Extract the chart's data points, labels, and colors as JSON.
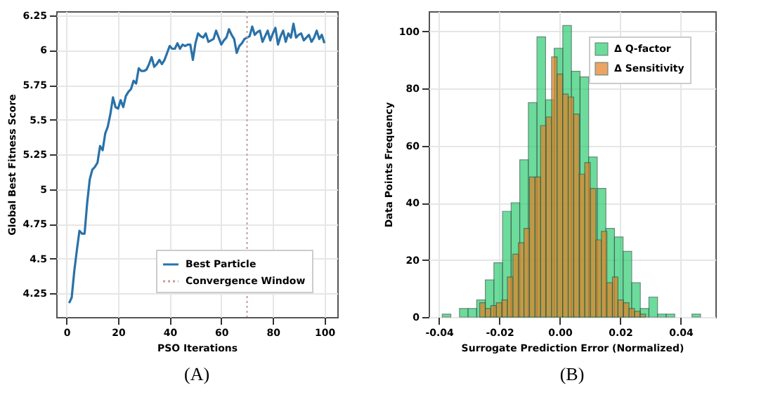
{
  "chart_data": [
    {
      "type": "line",
      "xlabel": "PSO Iterations",
      "ylabel": "Global Best Fitness Score",
      "annotations": [
        "(A)"
      ],
      "x": [
        1,
        2,
        3,
        4,
        5,
        6,
        7,
        8,
        9,
        10,
        11,
        12,
        13,
        14,
        15,
        16,
        17,
        18,
        19,
        20,
        21,
        22,
        23,
        24,
        25,
        26,
        27,
        28,
        29,
        30,
        31,
        32,
        33,
        34,
        35,
        36,
        37,
        38,
        39,
        40,
        41,
        42,
        43,
        44,
        45,
        46,
        47,
        48,
        49,
        50,
        51,
        52,
        53,
        54,
        55,
        56,
        57,
        58,
        59,
        60,
        61,
        62,
        63,
        64,
        65,
        66,
        67,
        68,
        69,
        70,
        71,
        72,
        73,
        74,
        75,
        76,
        77,
        78,
        79,
        80,
        81,
        82,
        83,
        84,
        85,
        86,
        87,
        88,
        89,
        90,
        91,
        92,
        93,
        94,
        95,
        96,
        97,
        98,
        99,
        100
      ],
      "series": [
        {
          "name": "Best Particle",
          "color": "#2a72a8",
          "values": [
            4.18,
            4.22,
            4.41,
            4.56,
            4.7,
            4.68,
            4.68,
            4.9,
            5.07,
            5.14,
            5.16,
            5.19,
            5.31,
            5.28,
            5.4,
            5.45,
            5.54,
            5.66,
            5.59,
            5.58,
            5.64,
            5.59,
            5.67,
            5.7,
            5.72,
            5.78,
            5.76,
            5.87,
            5.85,
            5.85,
            5.86,
            5.9,
            5.95,
            5.88,
            5.9,
            5.93,
            5.9,
            5.93,
            5.98,
            6.03,
            6.01,
            6.01,
            6.05,
            6.01,
            6.04,
            6.03,
            6.04,
            6.04,
            5.93,
            6.05,
            6.12,
            6.1,
            6.09,
            6.12,
            6.06,
            6.07,
            6.08,
            6.14,
            6.09,
            6.04,
            6.07,
            6.09,
            6.15,
            6.11,
            6.08,
            5.98,
            6.03,
            6.05,
            6.08,
            6.09,
            6.1,
            6.17,
            6.11,
            6.13,
            6.14,
            6.06,
            6.1,
            6.14,
            6.07,
            6.12,
            6.16,
            6.04,
            6.1,
            6.14,
            6.06,
            6.12,
            6.09,
            6.19,
            6.09,
            6.11,
            6.12,
            6.07,
            6.09,
            6.11,
            6.06,
            6.09,
            6.14,
            6.08,
            6.11,
            6.05
          ]
        }
      ],
      "ref_lines": [
        {
          "axis": "x",
          "value": 70,
          "label": "Convergence Window",
          "color": "#c99a9a",
          "line_style": "dotted"
        }
      ],
      "xlim": [
        -4,
        105
      ],
      "xticks": [
        0,
        20,
        40,
        60,
        80,
        100
      ],
      "ylim": [
        4.08,
        6.28
      ],
      "yticks": [
        4.25,
        4.5,
        4.75,
        5,
        5.25,
        5.5,
        5.75,
        6,
        6.25
      ],
      "grid": true,
      "legend": "bottom right"
    },
    {
      "type": "histogram",
      "xlabel": "Surrogate Prediction Error (Normalized)",
      "ylabel": "Data Points Frequency",
      "annotations": [
        "(B)"
      ],
      "bins": [
        -0.0389,
        -0.03605,
        -0.0332,
        -0.03035,
        -0.0275,
        -0.02465,
        -0.0218,
        -0.01895,
        -0.0161,
        -0.01325,
        -0.0104,
        -0.00755,
        -0.0047,
        -0.00185,
        0.001,
        0.00385,
        0.0067,
        0.00955,
        0.0124,
        0.01525,
        0.0181,
        0.02095,
        0.0238,
        0.02665,
        0.0295,
        0.03235,
        0.0352,
        0.03805,
        0.0409,
        0.04375,
        0.0466
      ],
      "series": [
        {
          "name": "Δ Q-factor",
          "color": "#2ecc71",
          "values": [
            1,
            0,
            3,
            3,
            6,
            13,
            19,
            37,
            40,
            55,
            75,
            98,
            76,
            94,
            102,
            86,
            84,
            56,
            45,
            31,
            28,
            23,
            12,
            3,
            7,
            1,
            1,
            0,
            0,
            1
          ]
        },
        {
          "name": "Δ Sensitivity",
          "color": "#e67e22",
          "bins": [
            -0.0265,
            -0.02467,
            -0.02284,
            -0.02101,
            -0.01918,
            -0.01735,
            -0.01552,
            -0.01369,
            -0.01186,
            -0.01003,
            -0.0082,
            -0.00637,
            -0.00454,
            -0.00271,
            -0.00088,
            0.00095,
            0.00278,
            0.00461,
            0.00644,
            0.00827,
            0.0101,
            0.01193,
            0.01376,
            0.01559,
            0.01742,
            0.01925,
            0.02108,
            0.02291,
            0.02474,
            0.02657,
            0.0284
          ],
          "values": [
            5,
            3,
            4,
            5,
            6,
            14,
            22,
            26,
            31,
            49,
            49,
            67,
            70,
            91,
            85,
            78,
            77,
            71,
            50,
            54,
            45,
            27,
            30,
            12,
            14,
            6,
            5,
            3,
            2,
            1
          ]
        }
      ],
      "xlim": [
        -0.0434,
        0.0515
      ],
      "xticks": [
        {
          "value": -0.04,
          "label": "-0.04"
        },
        {
          "value": -0.02,
          "label": "-0.02"
        },
        {
          "value": 0,
          "label": "0.00"
        },
        {
          "value": 0.02,
          "label": "0.02"
        },
        {
          "value": 0.04,
          "label": "0.04"
        }
      ],
      "ylim": [
        0,
        107
      ],
      "yticks": [
        0,
        20,
        40,
        60,
        80,
        100
      ],
      "grid": true,
      "legend": "top right"
    }
  ]
}
